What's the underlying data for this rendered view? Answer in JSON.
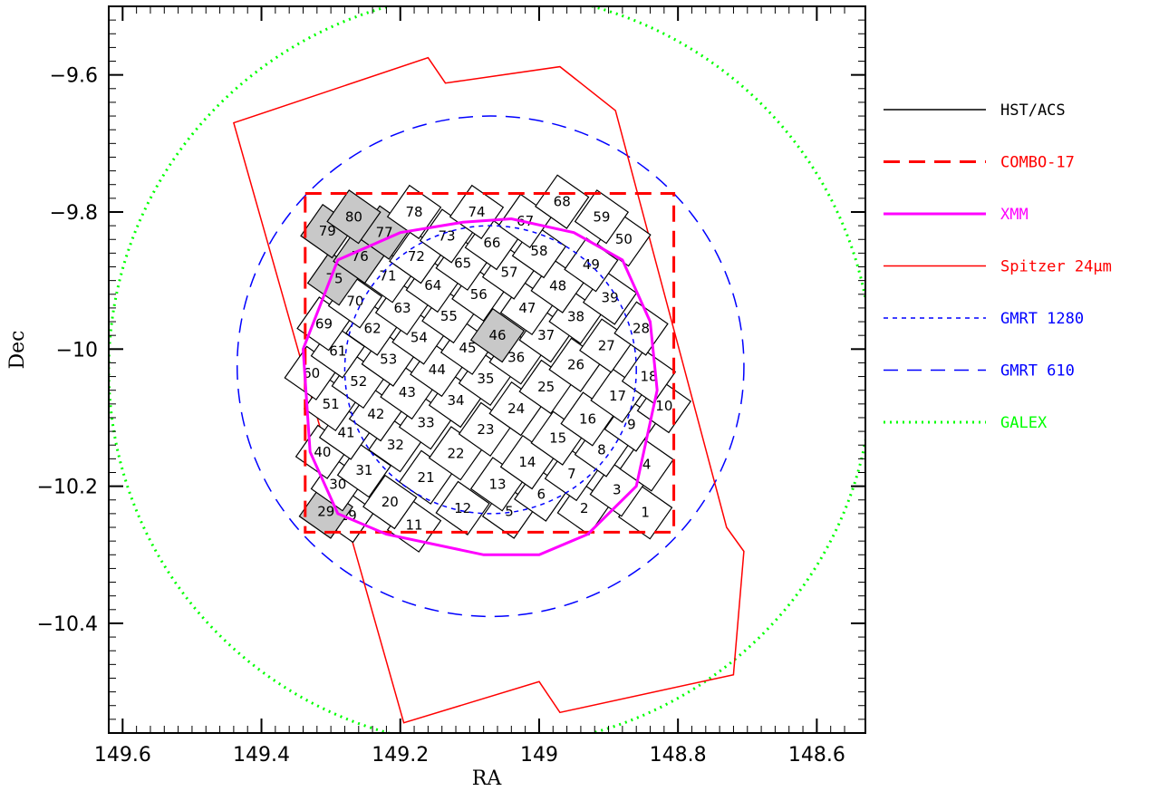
{
  "chart_data": {
    "type": "scatter",
    "title": "",
    "xlabel": "RA",
    "ylabel": "Dec",
    "xlim": [
      149.62,
      148.53
    ],
    "ylim": [
      -10.56,
      -9.5
    ],
    "x_ticks": [
      149.6,
      149.4,
      149.2,
      149,
      148.8,
      148.6
    ],
    "x_tick_labels": [
      "149.6",
      "149.4",
      "149.2",
      "149",
      "148.8",
      "148.6"
    ],
    "y_ticks": [
      -9.6,
      -9.8,
      -10,
      -10.2,
      -10.4
    ],
    "y_tick_labels": [
      "−9.6",
      "−9.8",
      "−10",
      "−10.2",
      "−10.4"
    ],
    "grid": false,
    "legend_position": "right",
    "legend": [
      {
        "label": "HST/ACS",
        "color": "#000000",
        "style": "solid"
      },
      {
        "label": "COMBO-17",
        "color": "#ff0000",
        "style": "longdash"
      },
      {
        "label": "XMM",
        "color": "#ff00ff",
        "style": "solid-thick"
      },
      {
        "label": "Spitzer 24μm",
        "color": "#ff0000",
        "style": "solid"
      },
      {
        "label": "GMRT 1280",
        "color": "#0000ff",
        "style": "shortdash"
      },
      {
        "label": "GMRT 610",
        "color": "#0000ff",
        "style": "dash"
      },
      {
        "label": "GALEX",
        "color": "#00ff00",
        "style": "dotted"
      }
    ],
    "regions": {
      "galex": {
        "center": [
          149.07,
          -10.03
        ],
        "radius_deg": 0.55
      },
      "gmrt_610": {
        "center": [
          149.07,
          -10.025
        ],
        "radius_deg": 0.365
      },
      "gmrt_1280": {
        "center": [
          149.07,
          -10.03
        ],
        "radius_deg": 0.21
      },
      "combo17": {
        "ra_min": 148.806,
        "ra_max": 149.337,
        "dec_min": -10.267,
        "dec_max": -9.773
      },
      "spitzer_24um": [
        [
          149.44,
          -9.67
        ],
        [
          149.16,
          -9.575
        ],
        [
          149.135,
          -9.612
        ],
        [
          148.97,
          -9.588
        ],
        [
          148.89,
          -9.652
        ],
        [
          148.73,
          -10.26
        ],
        [
          148.705,
          -10.295
        ],
        [
          148.72,
          -10.475
        ],
        [
          148.97,
          -10.53
        ],
        [
          149.0,
          -10.485
        ],
        [
          149.195,
          -10.545
        ]
      ],
      "xmm": [
        [
          149.34,
          -10.0
        ],
        [
          149.33,
          -10.15
        ],
        [
          149.29,
          -10.24
        ],
        [
          149.22,
          -10.27
        ],
        [
          149.08,
          -10.3
        ],
        [
          149.0,
          -10.3
        ],
        [
          148.93,
          -10.27
        ],
        [
          148.86,
          -10.2
        ],
        [
          148.83,
          -10.06
        ],
        [
          148.84,
          -9.96
        ],
        [
          148.88,
          -9.87
        ],
        [
          148.95,
          -9.83
        ],
        [
          149.04,
          -9.81
        ],
        [
          149.11,
          -9.815
        ],
        [
          149.2,
          -9.83
        ],
        [
          149.29,
          -9.87
        ]
      ]
    },
    "hst_acs": {
      "tile_size_deg": 0.055,
      "rotation_deg": 35,
      "shaded_tiles": [
        29,
        46,
        75,
        76,
        77,
        79,
        80
      ],
      "tiles": [
        {
          "id": 1,
          "ra": 148.847,
          "dec": -10.238
        },
        {
          "id": 2,
          "ra": 148.935,
          "dec": -10.232
        },
        {
          "id": 3,
          "ra": 148.888,
          "dec": -10.205
        },
        {
          "id": 4,
          "ra": 148.845,
          "dec": -10.168
        },
        {
          "id": 5,
          "ra": 149.043,
          "dec": -10.237
        },
        {
          "id": 6,
          "ra": 148.997,
          "dec": -10.212
        },
        {
          "id": 7,
          "ra": 148.953,
          "dec": -10.182
        },
        {
          "id": 8,
          "ra": 148.91,
          "dec": -10.147
        },
        {
          "id": 9,
          "ra": 148.867,
          "dec": -10.11
        },
        {
          "id": 10,
          "ra": 148.82,
          "dec": -10.083
        },
        {
          "id": 11,
          "ra": 149.18,
          "dec": -10.257
        },
        {
          "id": 12,
          "ra": 149.11,
          "dec": -10.232
        },
        {
          "id": 13,
          "ra": 149.06,
          "dec": -10.197
        },
        {
          "id": 14,
          "ra": 149.017,
          "dec": -10.165
        },
        {
          "id": 15,
          "ra": 148.973,
          "dec": -10.13
        },
        {
          "id": 16,
          "ra": 148.93,
          "dec": -10.102
        },
        {
          "id": 17,
          "ra": 148.887,
          "dec": -10.068
        },
        {
          "id": 18,
          "ra": 148.842,
          "dec": -10.04
        },
        {
          "id": 19,
          "ra": 149.275,
          "dec": -10.243
        },
        {
          "id": 20,
          "ra": 149.215,
          "dec": -10.223
        },
        {
          "id": 21,
          "ra": 149.163,
          "dec": -10.187
        },
        {
          "id": 22,
          "ra": 149.12,
          "dec": -10.152
        },
        {
          "id": 23,
          "ra": 149.077,
          "dec": -10.117
        },
        {
          "id": 24,
          "ra": 149.033,
          "dec": -10.087
        },
        {
          "id": 25,
          "ra": 148.99,
          "dec": -10.055
        },
        {
          "id": 26,
          "ra": 148.947,
          "dec": -10.023
        },
        {
          "id": 27,
          "ra": 148.903,
          "dec": -9.995
        },
        {
          "id": 28,
          "ra": 148.853,
          "dec": -9.97
        },
        {
          "id": 29,
          "ra": 149.307,
          "dec": -10.237
        },
        {
          "id": 30,
          "ra": 149.29,
          "dec": -10.197
        },
        {
          "id": 31,
          "ra": 149.252,
          "dec": -10.177
        },
        {
          "id": 32,
          "ra": 149.207,
          "dec": -10.14
        },
        {
          "id": 33,
          "ra": 149.163,
          "dec": -10.107
        },
        {
          "id": 34,
          "ra": 149.12,
          "dec": -10.075
        },
        {
          "id": 35,
          "ra": 149.077,
          "dec": -10.043
        },
        {
          "id": 36,
          "ra": 149.033,
          "dec": -10.012
        },
        {
          "id": 37,
          "ra": 148.99,
          "dec": -9.98
        },
        {
          "id": 38,
          "ra": 148.947,
          "dec": -9.953
        },
        {
          "id": 39,
          "ra": 148.898,
          "dec": -9.925
        },
        {
          "id": 40,
          "ra": 149.312,
          "dec": -10.15
        },
        {
          "id": 41,
          "ra": 149.278,
          "dec": -10.122
        },
        {
          "id": 42,
          "ra": 149.235,
          "dec": -10.095
        },
        {
          "id": 43,
          "ra": 149.19,
          "dec": -10.063
        },
        {
          "id": 44,
          "ra": 149.147,
          "dec": -10.03
        },
        {
          "id": 45,
          "ra": 149.103,
          "dec": -9.998
        },
        {
          "id": 46,
          "ra": 149.06,
          "dec": -9.98
        },
        {
          "id": 47,
          "ra": 149.017,
          "dec": -9.94
        },
        {
          "id": 48,
          "ra": 148.973,
          "dec": -9.908
        },
        {
          "id": 49,
          "ra": 148.925,
          "dec": -9.877
        },
        {
          "id": 50,
          "ra": 148.878,
          "dec": -9.84
        },
        {
          "id": 51,
          "ra": 149.3,
          "dec": -10.08
        },
        {
          "id": 52,
          "ra": 149.26,
          "dec": -10.047
        },
        {
          "id": 53,
          "ra": 149.217,
          "dec": -10.015
        },
        {
          "id": 54,
          "ra": 149.173,
          "dec": -9.983
        },
        {
          "id": 55,
          "ra": 149.13,
          "dec": -9.952
        },
        {
          "id": 56,
          "ra": 149.087,
          "dec": -9.92
        },
        {
          "id": 57,
          "ra": 149.043,
          "dec": -9.888
        },
        {
          "id": 58,
          "ra": 149.0,
          "dec": -9.857
        },
        {
          "id": 59,
          "ra": 148.91,
          "dec": -9.807
        },
        {
          "id": 60,
          "ra": 149.328,
          "dec": -10.035
        },
        {
          "id": 61,
          "ra": 149.29,
          "dec": -10.003
        },
        {
          "id": 62,
          "ra": 149.24,
          "dec": -9.97
        },
        {
          "id": 63,
          "ra": 149.197,
          "dec": -9.94
        },
        {
          "id": 64,
          "ra": 149.153,
          "dec": -9.907
        },
        {
          "id": 65,
          "ra": 149.11,
          "dec": -9.875
        },
        {
          "id": 66,
          "ra": 149.068,
          "dec": -9.845
        },
        {
          "id": 67,
          "ra": 149.02,
          "dec": -9.813
        },
        {
          "id": 68,
          "ra": 148.967,
          "dec": -9.785
        },
        {
          "id": 69,
          "ra": 149.31,
          "dec": -9.963
        },
        {
          "id": 70,
          "ra": 149.265,
          "dec": -9.93
        },
        {
          "id": 71,
          "ra": 149.218,
          "dec": -9.893
        },
        {
          "id": 72,
          "ra": 149.177,
          "dec": -9.865
        },
        {
          "id": 73,
          "ra": 149.133,
          "dec": -9.835
        },
        {
          "id": 74,
          "ra": 149.09,
          "dec": -9.8
        },
        {
          "id": 75,
          "ra": 149.295,
          "dec": -9.897
        },
        {
          "id": 76,
          "ra": 149.258,
          "dec": -9.865
        },
        {
          "id": 77,
          "ra": 149.223,
          "dec": -9.83
        },
        {
          "id": 78,
          "ra": 149.18,
          "dec": -9.8
        },
        {
          "id": 79,
          "ra": 149.305,
          "dec": -9.828
        },
        {
          "id": 80,
          "ra": 149.267,
          "dec": -9.807
        }
      ]
    }
  }
}
